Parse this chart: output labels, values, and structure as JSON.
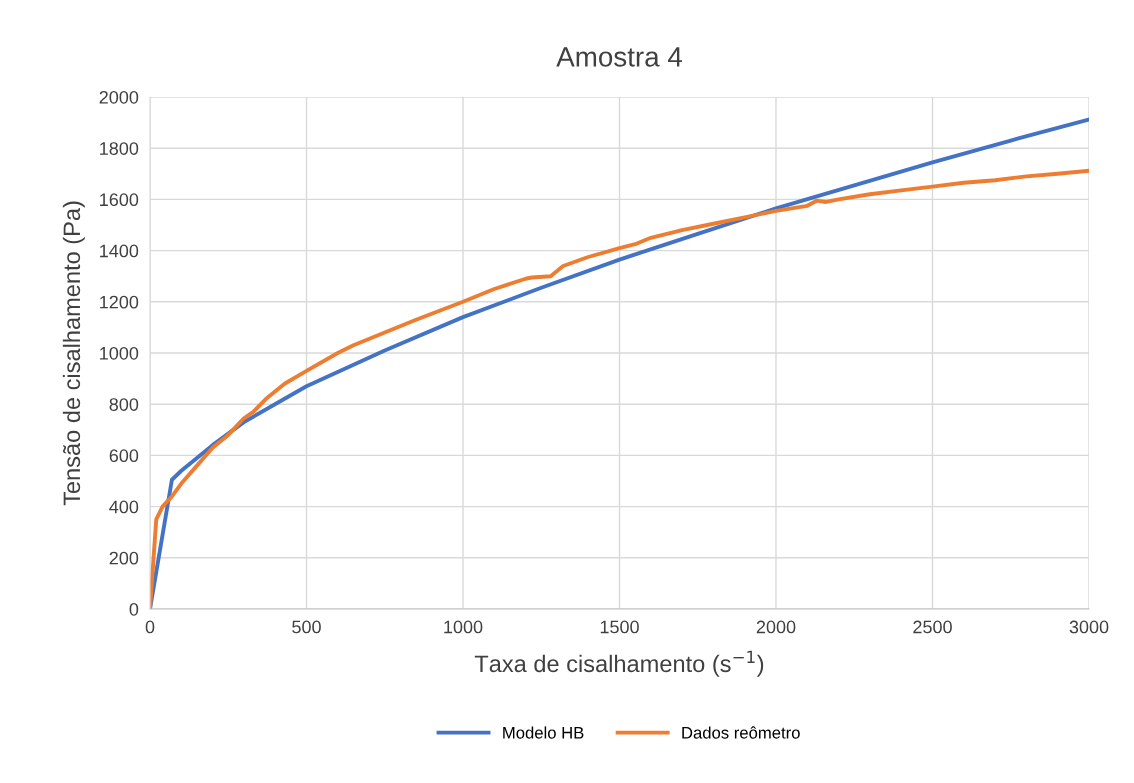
{
  "chart_data": {
    "type": "line",
    "title": "Amostra 4",
    "xlabel": "Taxa de cisalhamento (s$^{−1}$)",
    "ylabel": "Tensão de cisalhamento (Pa)",
    "xlim": [
      0,
      3000
    ],
    "xticks": [
      0,
      500,
      1000,
      1500,
      2000,
      2500,
      3000
    ],
    "ylim": [
      0,
      2000
    ],
    "yticks": [
      0,
      200,
      400,
      600,
      800,
      1000,
      1200,
      1400,
      1600,
      1800,
      2000
    ],
    "grid": true,
    "legend": "bottom",
    "marker": "none",
    "line_style": "solid",
    "series": [
      {
        "name": "Modelo HB",
        "color": "#4472c4",
        "x": [
          0,
          70,
          100,
          200,
          300,
          500,
          750,
          1000,
          1250,
          1500,
          1750,
          2000,
          2250,
          2500,
          2750,
          3000
        ],
        "values": [
          0,
          505,
          540,
          640,
          730,
          870,
          1010,
          1140,
          1255,
          1365,
          1465,
          1565,
          1655,
          1745,
          1830,
          1912
        ]
      },
      {
        "name": "Dados reômetro",
        "color": "#ed7d31",
        "x": [
          0,
          20,
          40,
          70,
          100,
          150,
          200,
          250,
          300,
          330,
          370,
          430,
          500,
          600,
          650,
          750,
          850,
          1000,
          1100,
          1200,
          1220,
          1280,
          1320,
          1400,
          1500,
          1550,
          1600,
          1700,
          1800,
          1900,
          2000,
          2100,
          2130,
          2160,
          2200,
          2300,
          2400,
          2500,
          2600,
          2700,
          2800,
          2900,
          3000
        ],
        "values": [
          0,
          350,
          400,
          440,
          490,
          560,
          630,
          680,
          745,
          770,
          820,
          880,
          930,
          1000,
          1030,
          1080,
          1130,
          1200,
          1250,
          1290,
          1295,
          1300,
          1340,
          1375,
          1410,
          1425,
          1450,
          1480,
          1505,
          1530,
          1555,
          1575,
          1595,
          1590,
          1600,
          1620,
          1635,
          1650,
          1665,
          1675,
          1690,
          1700,
          1712
        ]
      }
    ]
  }
}
